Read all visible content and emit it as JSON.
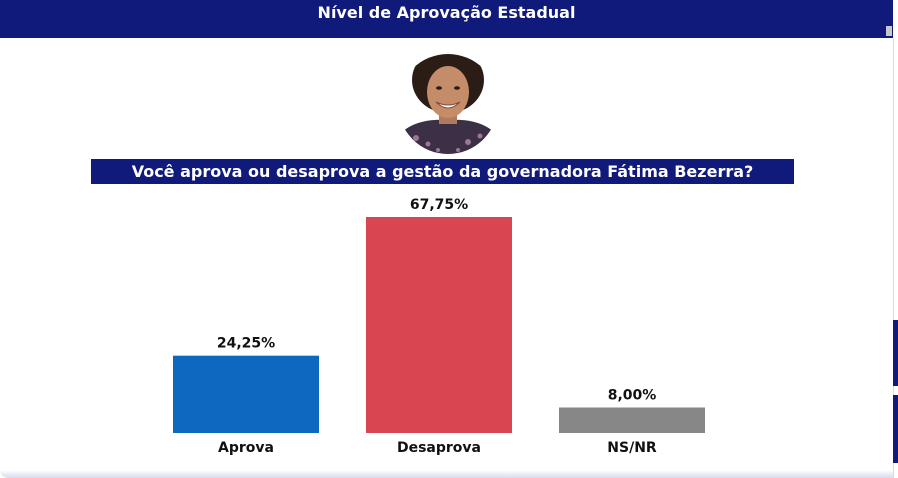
{
  "header": {
    "title": "Nível de Aprovação Estadual"
  },
  "question": "Você aprova ou desaprova a gestão da governadora Fátima Bezerra?",
  "colors": {
    "header_bg": "#101a7a",
    "aprova": "#0f68bf",
    "desaprova": "#d94551",
    "nsnr": "#878787"
  },
  "chart_data": {
    "type": "bar",
    "title": "Você aprova ou desaprova a gestão da governadora Fátima Bezerra?",
    "categories": [
      "Aprova",
      "Desaprova",
      "NS/NR"
    ],
    "values": [
      24.25,
      67.75,
      8.0
    ],
    "value_labels": [
      "24,25%",
      "67,75%",
      "8,00%"
    ],
    "bar_colors": [
      "#0f68bf",
      "#d94551",
      "#878787"
    ],
    "ylim": [
      0,
      70
    ],
    "grid": false,
    "legend": "none"
  }
}
